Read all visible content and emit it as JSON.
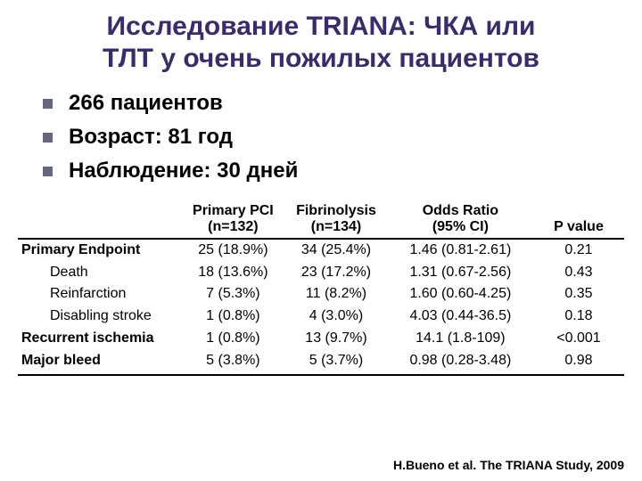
{
  "title_line1": "Исследование TRIANA: ЧКА или",
  "title_line2": "ТЛТ у очень пожилых пациентов",
  "bullets": {
    "b0": "266 пациентов",
    "b1": "Возраст: 81 год",
    "b2": "Наблюдение: 30 дней"
  },
  "table": {
    "headers": {
      "h0": "",
      "h1a": "Primary PCI",
      "h1b": "(n=132)",
      "h2a": "Fibrinolysis",
      "h2b": "(n=134)",
      "h3a": "Odds Ratio",
      "h3b": "(95% CI)",
      "h4": "P value"
    },
    "rows": {
      "r0": {
        "c0": "Primary Endpoint",
        "c1": "25 (18.9%)",
        "c2": "34 (25.4%)",
        "c3": "1.46 (0.81-2.61)",
        "c4": "0.21"
      },
      "r1": {
        "c0": "Death",
        "c1": "18 (13.6%)",
        "c2": "23 (17.2%)",
        "c3": "1.31 (0.67-2.56)",
        "c4": "0.43"
      },
      "r2": {
        "c0": "Reinfarction",
        "c1": "7 (5.3%)",
        "c2": "11 (8.2%)",
        "c3": "1.60 (0.60-4.25)",
        "c4": "0.35"
      },
      "r3": {
        "c0": "Disabling stroke",
        "c1": "1 (0.8%)",
        "c2": "4 (3.0%)",
        "c3": "4.03 (0.44-36.5)",
        "c4": "0.18"
      },
      "r4": {
        "c0": "Recurrent ischemia",
        "c1": "1 (0.8%)",
        "c2": "13 (9.7%)",
        "c3": "14.1 (1.8-109)",
        "c4": "<0.001"
      },
      "r5": {
        "c0": "Major bleed",
        "c1": "5 (3.8%)",
        "c2": "5 (3.7%)",
        "c3": "0.98 (0.28-3.48)",
        "c4": "0.98"
      }
    }
  },
  "citation": "H.Bueno et al. The TRIANA Study, 2009",
  "colors": {
    "title": "#3a2b6a",
    "bullet": "#666680",
    "text": "#000000",
    "background": "#ffffff",
    "rule": "#000000"
  }
}
